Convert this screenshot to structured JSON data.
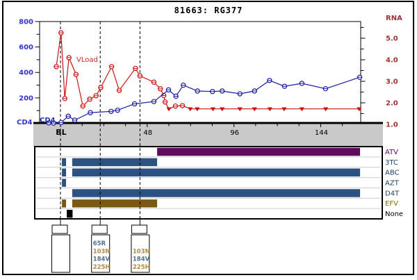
{
  "title": "81663: RG377",
  "chart": {
    "vload_series_label": "VLoad",
    "cd4_series_label": "CD4",
    "left_axis": {
      "name": "CD4",
      "color": "#3333cc",
      "ticks": [
        {
          "label": "800",
          "value": 800
        },
        {
          "label": "600",
          "value": 600
        },
        {
          "label": "400",
          "value": 400
        },
        {
          "label": "200",
          "value": 200
        }
      ],
      "minor_values": [
        100,
        300,
        500,
        700
      ]
    },
    "right_axis": {
      "name": "RNA",
      "color": "#993333",
      "ticks": [
        {
          "label": "5.0",
          "value": 5.0
        },
        {
          "label": "4.0",
          "value": 4.0
        },
        {
          "label": "3.0",
          "value": 3.0
        },
        {
          "label": "2.0",
          "value": 2.0
        },
        {
          "label": "1.0",
          "value": 1.0
        }
      ],
      "minor_values": [
        1.5,
        2.5,
        3.5,
        4.5,
        5.5
      ]
    },
    "x_axis": {
      "ticks": [
        {
          "label": "BL",
          "week": 0,
          "bold": true
        },
        {
          "label": "48",
          "week": 48,
          "bold": false
        },
        {
          "label": "96",
          "week": 96,
          "bold": false
        },
        {
          "label": "144",
          "week": 144,
          "bold": false
        }
      ],
      "minor_weeks": [
        12,
        24,
        36,
        60,
        72,
        84,
        108,
        120,
        132,
        156
      ]
    }
  },
  "chart_data": {
    "type": "line",
    "x_unit": "weeks",
    "x_range_weeks": [
      -11,
      166
    ],
    "cd4_axis_range": [
      0,
      800
    ],
    "rna_axis_range": [
      1.0,
      5.8
    ],
    "below_detection_marker": "triangle-down",
    "series": [
      {
        "name": "VLoad",
        "axis": "rna_log10",
        "color": "#cc1111",
        "points": [
          [
            -2.3,
            3.68,
            "c"
          ],
          [
            0.3,
            5.25,
            "c"
          ],
          [
            2.4,
            2.2,
            "c"
          ],
          [
            4.7,
            4.1,
            "c"
          ],
          [
            8.6,
            3.32,
            "c"
          ],
          [
            12.4,
            1.85,
            "c"
          ],
          [
            16.2,
            2.17,
            "c"
          ],
          [
            19.7,
            2.33,
            "c"
          ],
          [
            22.3,
            2.71,
            "c"
          ],
          [
            28.3,
            3.68,
            "c"
          ],
          [
            32.5,
            2.58,
            "c"
          ],
          [
            41.5,
            3.6,
            "c"
          ],
          [
            44,
            3.25,
            "c"
          ],
          [
            51.7,
            2.96,
            "c"
          ],
          [
            55.3,
            2.65,
            "c"
          ],
          [
            57.2,
            2.34,
            "c"
          ],
          [
            57.9,
            2.04,
            "c"
          ],
          [
            60,
            1.72,
            "t"
          ],
          [
            63.6,
            1.85,
            "c"
          ],
          [
            67.5,
            1.87,
            "c"
          ],
          [
            71.8,
            1.72,
            "t"
          ],
          [
            75.7,
            1.72,
            "t"
          ],
          [
            84.4,
            1.72,
            "t"
          ],
          [
            89.5,
            1.72,
            "t"
          ],
          [
            99.3,
            1.72,
            "t"
          ],
          [
            107.4,
            1.72,
            "t"
          ],
          [
            115.9,
            1.72,
            "t"
          ],
          [
            123.8,
            1.72,
            "t"
          ],
          [
            133.6,
            1.72,
            "t"
          ],
          [
            146.8,
            1.72,
            "t"
          ],
          [
            165.3,
            1.72,
            "t"
          ]
        ]
      },
      {
        "name": "CD4",
        "axis": "cells",
        "color": "#1a1aa0",
        "points": [
          [
            -6.5,
            4
          ],
          [
            -3.8,
            2
          ],
          [
            0.4,
            6
          ],
          [
            4.3,
            56
          ],
          [
            7.9,
            25
          ],
          [
            16.5,
            84
          ],
          [
            28,
            94
          ],
          [
            31.6,
            103
          ],
          [
            41,
            153
          ],
          [
            51.7,
            171
          ],
          [
            59.8,
            263
          ],
          [
            63.9,
            213
          ],
          [
            68,
            300
          ],
          [
            75.8,
            254
          ],
          [
            84.1,
            250
          ],
          [
            89.5,
            254
          ],
          [
            99.3,
            232
          ],
          [
            107.4,
            254
          ],
          [
            115.7,
            337
          ],
          [
            124,
            291
          ],
          [
            133.6,
            314
          ],
          [
            146.7,
            272
          ],
          [
            165.6,
            362
          ]
        ]
      }
    ],
    "treatments": [
      {
        "drug": "ATV",
        "bar_color": "#5e0b5e",
        "label_color": "#660066",
        "segments_weeks": [
          [
            53.5,
            165.8
          ]
        ]
      },
      {
        "drug": "3TC",
        "bar_color": "#2d5180",
        "label_color": "#1d4066",
        "segments_weeks": [
          [
            0.8,
            3.1
          ],
          [
            6.5,
            53.5
          ]
        ]
      },
      {
        "drug": "ABC",
        "bar_color": "#2d5180",
        "label_color": "#1d4066",
        "segments_weeks": [
          [
            0.8,
            3.1
          ],
          [
            6.5,
            165.8
          ]
        ]
      },
      {
        "drug": "AZT",
        "bar_color": "#2d5180",
        "label_color": "#1d4066",
        "segments_weeks": [
          [
            0.8,
            3.1
          ]
        ]
      },
      {
        "drug": "D4T",
        "bar_color": "#2d5180",
        "label_color": "#1d4066",
        "segments_weeks": [
          [
            6.5,
            165.8
          ]
        ]
      },
      {
        "drug": "EFV",
        "bar_color": "#7a5a12",
        "label_color": "#8f6b00",
        "segments_weeks": [
          [
            0.8,
            3.1
          ],
          [
            6.5,
            53.5
          ]
        ]
      },
      {
        "drug": "None",
        "bar_color": "#000000",
        "label_color": "#000000",
        "segments_weeks": [
          [
            3.5,
            6.7
          ]
        ]
      }
    ],
    "resistance_flags": [
      {
        "week": 0,
        "mutations": []
      },
      {
        "week": 22,
        "mutations": [
          {
            "text": "65R",
            "color": "#51718f"
          },
          {
            "text": "103N",
            "color": "#b08a45"
          },
          {
            "text": "184V",
            "color": "#51718f"
          },
          {
            "text": "225H",
            "color": "#b08a45"
          }
        ]
      },
      {
        "week": 44,
        "mutations": [
          {
            "text": "103N",
            "color": "#b08a45"
          },
          {
            "text": "184V",
            "color": "#51718f"
          },
          {
            "text": "225H",
            "color": "#b08a45"
          }
        ]
      }
    ],
    "colors": {
      "vload_line": "#cc1111",
      "cd4_line": "#1a1aa0",
      "x_band_gray": "#c9c9c9",
      "row_separator": "#cccccc"
    }
  }
}
